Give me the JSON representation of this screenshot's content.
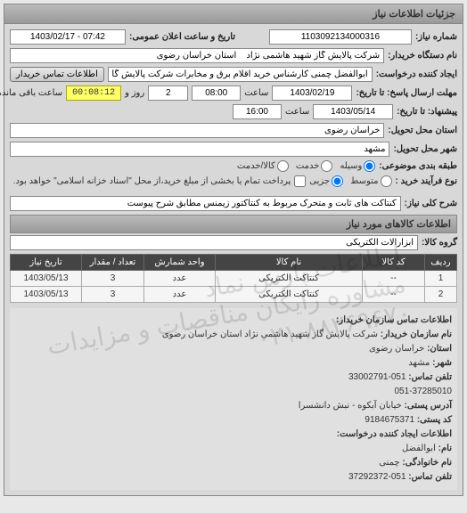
{
  "panel_title": "جزئیات اطلاعات نیاز",
  "number": {
    "label": "شماره نیاز:",
    "value": "1103092134000316"
  },
  "announce": {
    "label": "تاریخ و ساعت اعلان عمومی:",
    "value": "07:42 - 1403/02/17"
  },
  "org": {
    "label": "نام دستگاه خریدار:",
    "value": "شرکت پالایش گاز شهید هاشمی نژاد    استان خراسان رضوی"
  },
  "requester": {
    "label": "ایجاد کننده درخواست:",
    "value": "ابوالفضل چمنی کارشناس خرید اقلام برق و مخابرات شرکت پالایش گاز شهید ه",
    "btn": "اطلاعات تماس خریدار"
  },
  "deadline": {
    "label": "مهلت ارسال پاسخ: تا تاریخ:",
    "date": "1403/02/19",
    "time_label": "ساعت",
    "time": "08:00",
    "days_sep": "روز و",
    "days": "2",
    "timer": "00:08:12",
    "remain": "ساعت باقی مانده"
  },
  "quote": {
    "label": "پیشنهاد: تا تاریخ:",
    "date": "1403/05/14",
    "time_label": "ساعت",
    "time": "16:00"
  },
  "province": {
    "label": "استان محل تحویل:",
    "value": "خراسان رضوی"
  },
  "city": {
    "label": "شهر محل تحویل:",
    "value": "مشهد"
  },
  "grouping": {
    "label": "طبقه بندی موضوعی:",
    "opts": [
      "وسیله",
      "خدمت",
      "کالا/خدمت"
    ],
    "selected": 0
  },
  "process": {
    "label": "نوع فرآیند خرید :",
    "opts": [
      "متوسط",
      "جزیی"
    ],
    "selected": 1,
    "chk_label": "پرداخت تمام یا بخشی از مبلغ خرید،از محل \"اسناد خزانه اسلامی\" خواهد بود."
  },
  "summary": {
    "label": "شرح کلی نیاز:",
    "value": "کنتاکت های ثابت و متحرک مربوط به کنتاکتور زیمنس مطابق شرح پیوست"
  },
  "goods_title": "اطلاعات کالاهای مورد نیاز",
  "group": {
    "label": "گروه کالا:",
    "value": "ابزارآلات الکتریکی"
  },
  "table": {
    "cols": [
      "ردیف",
      "کد کالا",
      "نام کالا",
      "واحد شمارش",
      "تعداد / مقدار",
      "تاریخ نیاز"
    ],
    "rows": [
      [
        "1",
        "--",
        "کنتاکت الکتریکی",
        "عدد",
        "3",
        "1403/05/13"
      ],
      [
        "2",
        "--",
        "کنتاکت الکتریکی",
        "عدد",
        "3",
        "1403/05/13"
      ]
    ],
    "col_widths": [
      "36px",
      "70px",
      "auto",
      "80px",
      "70px",
      "80px"
    ]
  },
  "contact": {
    "header": "اطلاعات تماس سازمان خریدار:",
    "rows": [
      {
        "k": "نام سازمان خریدار:",
        "v": "شرکت پالایش گاز شهید هاشمی نژاد استان خراسان رضوی"
      },
      {
        "k": "استان:",
        "v": "خراسان رضوی"
      },
      {
        "k": "شهر:",
        "v": "مشهد"
      },
      {
        "k": "تلفن تماس:",
        "v": "051-33002791"
      },
      {
        "k": "",
        "v": "051-37285010"
      },
      {
        "k": "آدرس پستی:",
        "v": "خیابان آبکوه - نبش دانشسرا"
      },
      {
        "k": "کد پستی:",
        "v": "9184675371"
      },
      {
        "k": "اطلاعات ایجاد کننده درخواست:",
        "v": ""
      },
      {
        "k": "نام:",
        "v": "ابوالفضل"
      },
      {
        "k": "نام خانوادگی:",
        "v": "چمنی"
      },
      {
        "k": "تلفن تماس:",
        "v": "051-37292372"
      }
    ]
  },
  "watermark": "اطلاعات پارس نماد\nمشاوره رایگان مناقصات و مزایدات\n۰۲۱-۸۸۳۶۹۶۷۰",
  "colors": {
    "bg": "#e8e8e8",
    "panel_body": "#d8d8d8",
    "header_grad_a": "#bbbbbb",
    "header_grad_b": "#999999",
    "border": "#888888",
    "timer_bg": "#ffff66",
    "th_bg": "#444444"
  }
}
